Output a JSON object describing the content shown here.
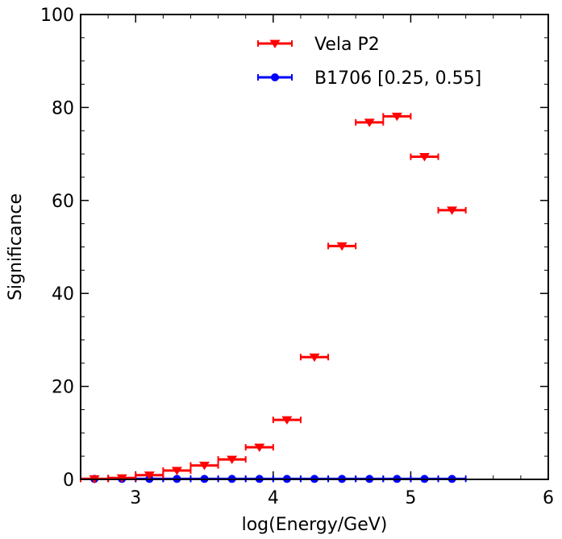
{
  "chart_data": {
    "type": "scatter",
    "title": "",
    "xlabel": "log(Energy/GeV)",
    "ylabel": "Significance",
    "xlim": [
      2.6,
      6.0
    ],
    "ylim": [
      0,
      100
    ],
    "xticks": [
      3,
      4,
      5,
      6
    ],
    "xtick_labels": [
      "3",
      "4",
      "5",
      "6"
    ],
    "yticks": [
      0,
      20,
      40,
      60,
      80,
      100
    ],
    "ytick_labels": [
      "0",
      "20",
      "40",
      "60",
      "80",
      "100"
    ],
    "x_minor_step": 0.2,
    "y_minor_step": 5,
    "legend_position": "top-right",
    "series": [
      {
        "name": "Vela P2",
        "color": "#ff0000",
        "marker": "triangle-down",
        "x": [
          2.7,
          2.9,
          3.1,
          3.3,
          3.5,
          3.7,
          3.9,
          4.1,
          4.3,
          4.5,
          4.7,
          4.9,
          5.1,
          5.3
        ],
        "y": [
          0.1,
          0.3,
          0.9,
          1.9,
          3.0,
          4.3,
          6.9,
          12.8,
          26.3,
          50.2,
          76.8,
          78.1,
          69.4,
          57.9
        ],
        "xerr": 0.1
      },
      {
        "name": "B1706 [0.25, 0.55]",
        "color": "#0000ff",
        "marker": "circle",
        "x": [
          2.7,
          2.9,
          3.1,
          3.3,
          3.5,
          3.7,
          3.9,
          4.1,
          4.3,
          4.5,
          4.7,
          4.9,
          5.1,
          5.3
        ],
        "y": [
          0.1,
          0.1,
          0.1,
          0.1,
          0.1,
          0.1,
          0.1,
          0.1,
          0.1,
          0.1,
          0.1,
          0.1,
          0.1,
          0.1
        ],
        "xerr": 0.1
      }
    ]
  }
}
